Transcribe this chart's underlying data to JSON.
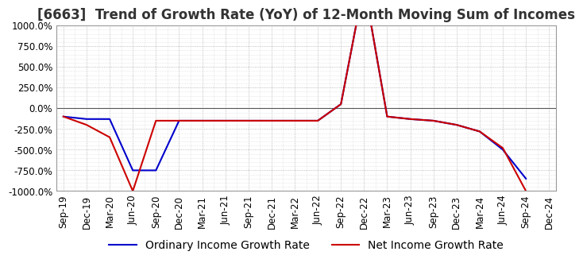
{
  "title": "[6663]  Trend of Growth Rate (YoY) of 12-Month Moving Sum of Incomes",
  "background_color": "#ffffff",
  "plot_background_color": "#ffffff",
  "ylim": [
    -1000,
    1000
  ],
  "yticks": [
    -1000,
    -750,
    -500,
    -250,
    0,
    250,
    500,
    750,
    1000
  ],
  "ytick_labels": [
    "-1000.0%",
    "-750.0%",
    "-500.0%",
    "-250.0%",
    "0.0%",
    "250.0%",
    "500.0%",
    "750.0%",
    "1000.0%"
  ],
  "x_labels": [
    "Sep-19",
    "Dec-19",
    "Mar-20",
    "Jun-20",
    "Sep-20",
    "Dec-20",
    "Mar-21",
    "Jun-21",
    "Sep-21",
    "Dec-21",
    "Mar-22",
    "Jun-22",
    "Sep-22",
    "Dec-22",
    "Mar-23",
    "Jun-23",
    "Sep-23",
    "Dec-23",
    "Mar-24",
    "Jun-24",
    "Sep-24",
    "Dec-24"
  ],
  "ordinary_income": [
    -100,
    -130,
    -130,
    -750,
    -750,
    -150,
    -150,
    -150,
    -150,
    -150,
    -150,
    -150,
    50,
    1500,
    -100,
    -130,
    -150,
    -200,
    -280,
    -500,
    -850,
    null
  ],
  "net_income": [
    -100,
    -200,
    -350,
    -1000,
    -150,
    -150,
    -150,
    -150,
    -150,
    -150,
    -150,
    -150,
    50,
    1500,
    -100,
    -130,
    -150,
    -200,
    -280,
    -480,
    -1000,
    null
  ],
  "ordinary_color": "#0000cc",
  "net_color": "#cc0000",
  "line_width": 1.5,
  "title_fontsize": 12,
  "tick_fontsize": 8.5,
  "legend_fontsize": 10
}
